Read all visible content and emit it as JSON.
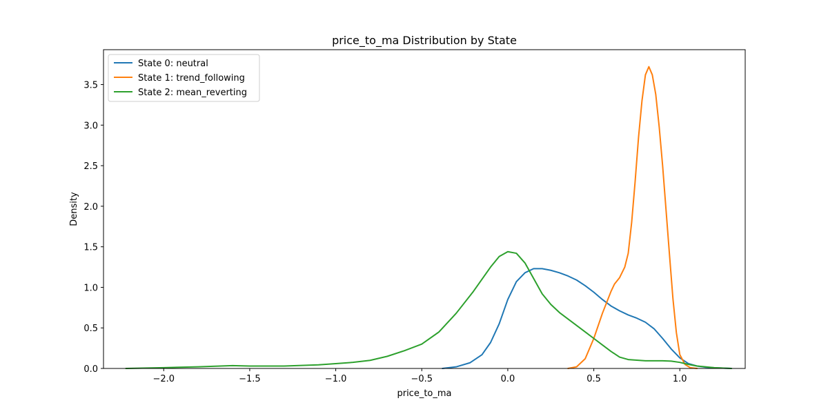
{
  "chart_data": {
    "type": "line",
    "title": "price_to_ma Distribution by State",
    "xlabel": "price_to_ma",
    "ylabel": "Density",
    "xlim": [
      -2.35,
      1.38
    ],
    "ylim": [
      0,
      3.93
    ],
    "xticks": [
      -2.0,
      -1.5,
      -1.0,
      -0.5,
      0.0,
      0.5,
      1.0
    ],
    "xtick_labels": [
      "−2.0",
      "−1.5",
      "−1.0",
      "−0.5",
      "0.0",
      "0.5",
      "1.0"
    ],
    "yticks": [
      0.0,
      0.5,
      1.0,
      1.5,
      2.0,
      2.5,
      3.0,
      3.5
    ],
    "ytick_labels": [
      "0.0",
      "0.5",
      "1.0",
      "1.5",
      "2.0",
      "2.5",
      "3.0",
      "3.5"
    ],
    "grid": false,
    "legend": "top-left",
    "series": [
      {
        "name": "State 0: neutral",
        "color": "#1f77b4",
        "x": [
          -0.38,
          -0.3,
          -0.22,
          -0.15,
          -0.1,
          -0.05,
          0.0,
          0.05,
          0.1,
          0.15,
          0.2,
          0.25,
          0.3,
          0.35,
          0.4,
          0.45,
          0.5,
          0.55,
          0.6,
          0.65,
          0.7,
          0.75,
          0.8,
          0.85,
          0.9,
          0.95,
          1.0,
          1.05,
          1.1,
          1.15,
          1.2,
          1.25,
          1.3
        ],
        "y": [
          0.0,
          0.02,
          0.07,
          0.17,
          0.32,
          0.55,
          0.85,
          1.07,
          1.18,
          1.23,
          1.23,
          1.21,
          1.18,
          1.14,
          1.09,
          1.02,
          0.94,
          0.85,
          0.77,
          0.71,
          0.66,
          0.62,
          0.57,
          0.49,
          0.37,
          0.24,
          0.13,
          0.06,
          0.03,
          0.015,
          0.008,
          0.004,
          0.0
        ]
      },
      {
        "name": "State 1: trend_following",
        "color": "#ff7f0e",
        "x": [
          0.35,
          0.4,
          0.45,
          0.5,
          0.55,
          0.6,
          0.62,
          0.65,
          0.68,
          0.7,
          0.72,
          0.74,
          0.76,
          0.78,
          0.8,
          0.82,
          0.84,
          0.86,
          0.88,
          0.9,
          0.92,
          0.94,
          0.96,
          0.98,
          1.0,
          1.03,
          1.06,
          1.1
        ],
        "y": [
          0.0,
          0.02,
          0.12,
          0.37,
          0.68,
          0.95,
          1.04,
          1.12,
          1.25,
          1.42,
          1.8,
          2.3,
          2.85,
          3.3,
          3.62,
          3.72,
          3.62,
          3.38,
          2.98,
          2.5,
          1.95,
          1.4,
          0.86,
          0.44,
          0.17,
          0.05,
          0.01,
          0.0
        ]
      },
      {
        "name": "State 2: mean_reverting",
        "color": "#2ca02c",
        "x": [
          -2.22,
          -2.0,
          -1.8,
          -1.6,
          -1.5,
          -1.3,
          -1.1,
          -1.0,
          -0.9,
          -0.8,
          -0.7,
          -0.6,
          -0.5,
          -0.4,
          -0.3,
          -0.2,
          -0.1,
          -0.05,
          0.0,
          0.05,
          0.1,
          0.15,
          0.2,
          0.25,
          0.3,
          0.35,
          0.4,
          0.45,
          0.5,
          0.55,
          0.6,
          0.65,
          0.7,
          0.8,
          0.9,
          0.95,
          1.0,
          1.05,
          1.1,
          1.2,
          1.3
        ],
        "y": [
          0.0,
          0.01,
          0.02,
          0.035,
          0.03,
          0.03,
          0.045,
          0.06,
          0.075,
          0.1,
          0.15,
          0.22,
          0.3,
          0.45,
          0.68,
          0.95,
          1.25,
          1.38,
          1.44,
          1.42,
          1.3,
          1.11,
          0.92,
          0.79,
          0.69,
          0.61,
          0.53,
          0.45,
          0.37,
          0.29,
          0.21,
          0.14,
          0.11,
          0.095,
          0.095,
          0.09,
          0.075,
          0.05,
          0.03,
          0.01,
          0.0
        ]
      }
    ]
  }
}
